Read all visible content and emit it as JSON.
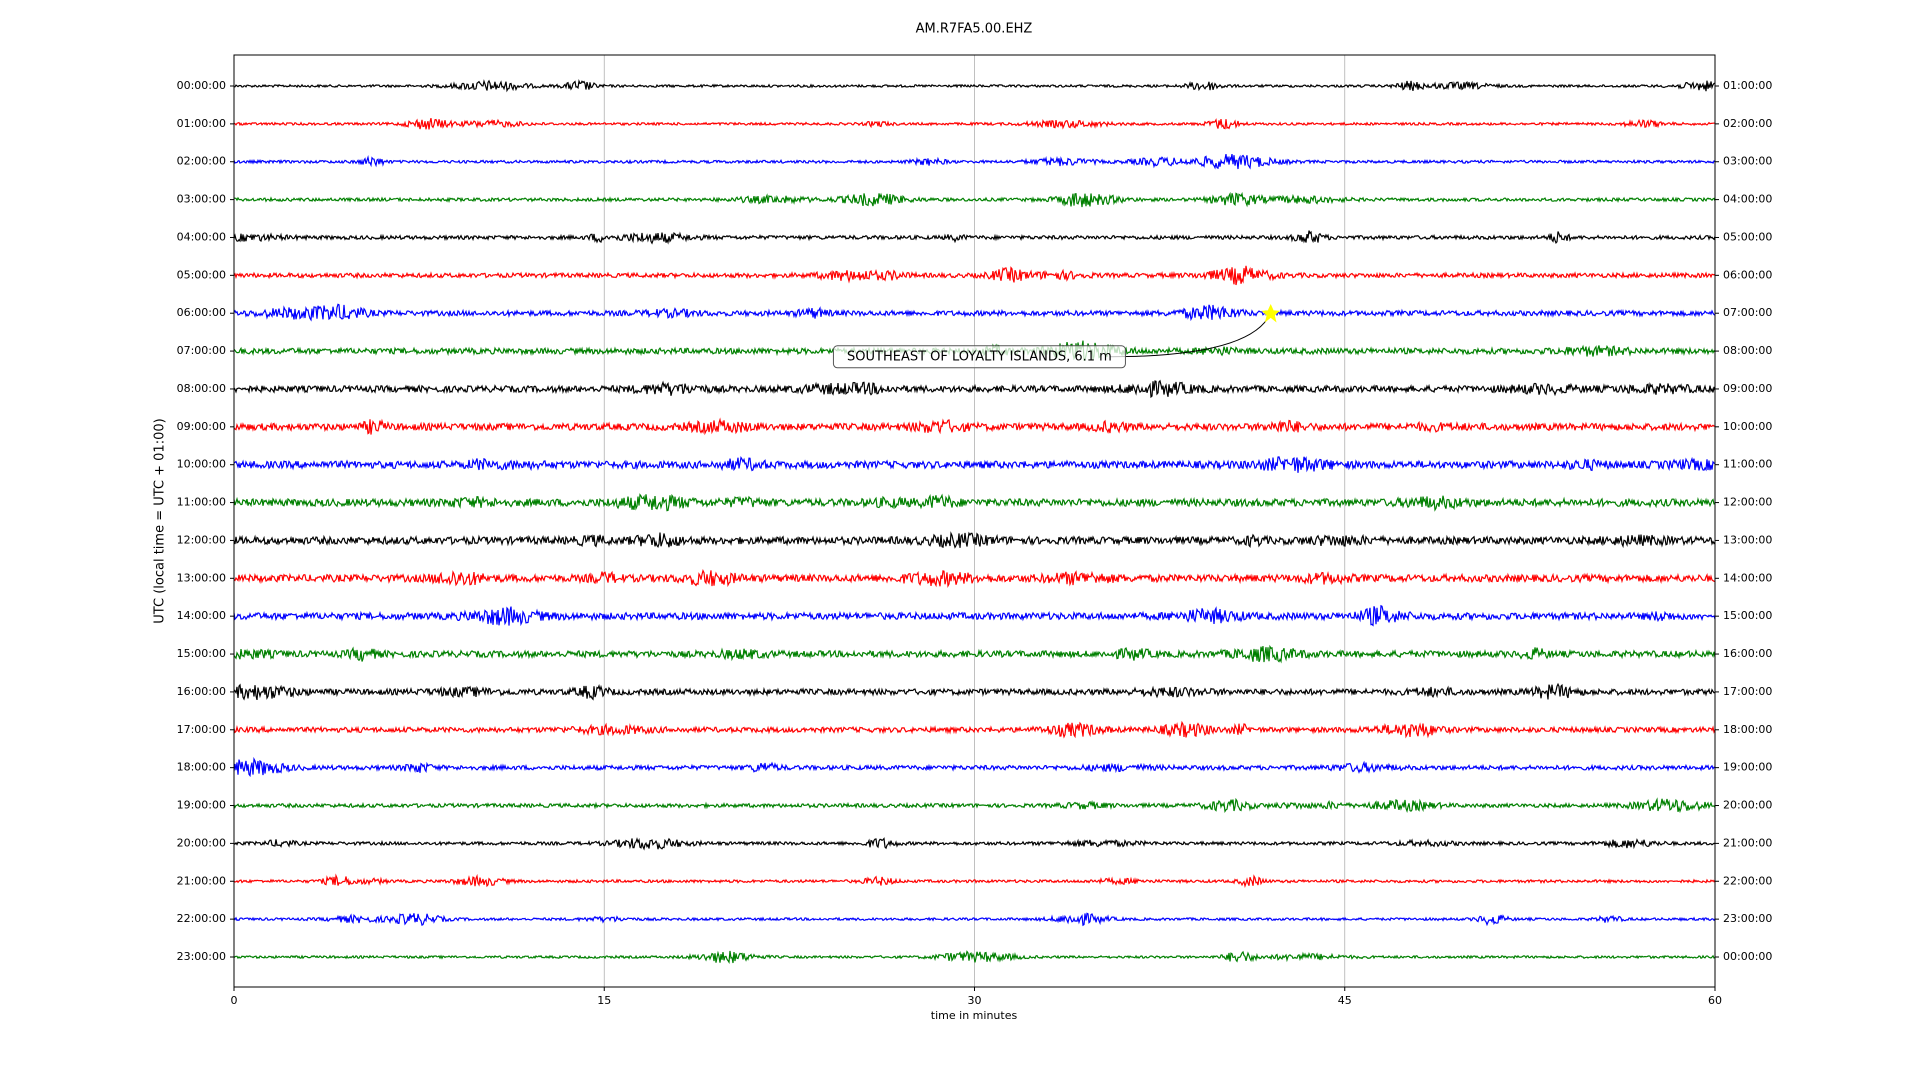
{
  "chart_data": {
    "type": "dayplot",
    "title": "AM.R7FA5.00.EHZ",
    "x_label": "time in minutes",
    "y_label": "UTC (local time = UTC + 01:00)",
    "xlim": [
      0,
      60
    ],
    "xticks": [
      0,
      15,
      30,
      45,
      60
    ],
    "grid": true,
    "rows": [
      {
        "left": "00:00:00",
        "right": "01:00:00",
        "color": "#000000"
      },
      {
        "left": "01:00:00",
        "right": "02:00:00",
        "color": "#ff0000"
      },
      {
        "left": "02:00:00",
        "right": "03:00:00",
        "color": "#0000ff"
      },
      {
        "left": "03:00:00",
        "right": "04:00:00",
        "color": "#008000"
      },
      {
        "left": "04:00:00",
        "right": "05:00:00",
        "color": "#000000"
      },
      {
        "left": "05:00:00",
        "right": "06:00:00",
        "color": "#ff0000"
      },
      {
        "left": "06:00:00",
        "right": "07:00:00",
        "color": "#0000ff"
      },
      {
        "left": "07:00:00",
        "right": "08:00:00",
        "color": "#008000"
      },
      {
        "left": "08:00:00",
        "right": "09:00:00",
        "color": "#000000"
      },
      {
        "left": "09:00:00",
        "right": "10:00:00",
        "color": "#ff0000"
      },
      {
        "left": "10:00:00",
        "right": "11:00:00",
        "color": "#0000ff"
      },
      {
        "left": "11:00:00",
        "right": "12:00:00",
        "color": "#008000"
      },
      {
        "left": "12:00:00",
        "right": "13:00:00",
        "color": "#000000"
      },
      {
        "left": "13:00:00",
        "right": "14:00:00",
        "color": "#ff0000"
      },
      {
        "left": "14:00:00",
        "right": "15:00:00",
        "color": "#0000ff"
      },
      {
        "left": "15:00:00",
        "right": "16:00:00",
        "color": "#008000"
      },
      {
        "left": "16:00:00",
        "right": "17:00:00",
        "color": "#000000"
      },
      {
        "left": "17:00:00",
        "right": "18:00:00",
        "color": "#ff0000"
      },
      {
        "left": "18:00:00",
        "right": "19:00:00",
        "color": "#0000ff"
      },
      {
        "left": "19:00:00",
        "right": "20:00:00",
        "color": "#008000"
      },
      {
        "left": "20:00:00",
        "right": "21:00:00",
        "color": "#000000"
      },
      {
        "left": "21:00:00",
        "right": "22:00:00",
        "color": "#ff0000"
      },
      {
        "left": "22:00:00",
        "right": "23:00:00",
        "color": "#0000ff"
      },
      {
        "left": "23:00:00",
        "right": "00:00:00",
        "color": "#008000"
      }
    ],
    "event": {
      "label": "SOUTHEAST OF LOYALTY ISLANDS, 6.1 m",
      "row": 6,
      "minute": 42,
      "color": "#ffff00"
    }
  }
}
